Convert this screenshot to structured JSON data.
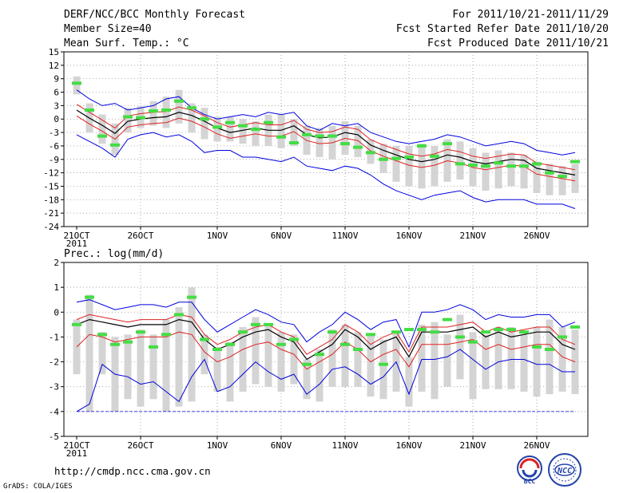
{
  "header": {
    "title": "DERF/NCC/BCC Monthly Forecast",
    "member": "Member Size=40",
    "variable": "Mean Surf. Temp.: °C",
    "period": "For 2011/10/21-2011/11/29",
    "started": "Fcst Started Refer Date 2011/10/20",
    "produced": "Fcst Produced Date 2011/10/21"
  },
  "footer": {
    "url": "http://cmdp.ncc.cma.gov.cn",
    "grads": "GrADS: COLA/IGES",
    "logo1_text": "BCC",
    "logo2_text": "NCC"
  },
  "colors": {
    "box": "#d4d4d4",
    "mean": "#000000",
    "spread": "#dd2222",
    "envelope": "#0000dd",
    "point": "#44dd44",
    "grid": "#888888"
  },
  "chart_data": [
    {
      "type": "line",
      "title": "Mean Surf. Temp.: °C",
      "ylim": [
        -24,
        15
      ],
      "yticks": [
        "15",
        "12",
        "9",
        "6",
        "3",
        "0",
        "-3",
        "-6",
        "-9",
        "-12",
        "-15",
        "-18",
        "-21",
        "-24"
      ],
      "xticks": [
        "21OCT",
        "26OCT",
        "1NOV",
        "6NOV",
        "11NOV",
        "16NOV",
        "21NOV",
        "26NOV"
      ],
      "xtick_days": [
        0,
        5,
        11,
        16,
        21,
        26,
        31,
        36
      ],
      "year_label": "2011",
      "days": 40,
      "series": [
        {
          "name": "ensemble mean",
          "values": [
            2.0,
            0.2,
            -1.4,
            -3.2,
            -0.5,
            0.0,
            0.3,
            0.5,
            1.5,
            0.8,
            -0.5,
            -2.0,
            -3.0,
            -2.5,
            -2.0,
            -2.5,
            -2.5,
            -1.5,
            -3.5,
            -4.2,
            -4.0,
            -3.0,
            -3.5,
            -5.8,
            -7.0,
            -8.0,
            -9.0,
            -9.5,
            -9.0,
            -8.0,
            -8.5,
            -9.5,
            -10.0,
            -9.5,
            -9.0,
            -9.2,
            -11.0,
            -11.5,
            -12.0,
            -12.5
          ]
        },
        {
          "name": "spread upper",
          "values": [
            3.3,
            1.5,
            -0.2,
            -2.0,
            0.7,
            1.2,
            1.5,
            1.7,
            2.7,
            2.0,
            0.7,
            -0.8,
            -1.8,
            -1.3,
            -0.8,
            -1.3,
            -1.3,
            -0.3,
            -2.3,
            -3.0,
            -2.8,
            -1.8,
            -2.3,
            -4.6,
            -5.8,
            -6.8,
            -7.8,
            -8.3,
            -7.8,
            -6.8,
            -7.3,
            -8.3,
            -8.8,
            -8.3,
            -7.8,
            -8.0,
            -9.8,
            -10.3,
            -10.8,
            -11.3
          ]
        },
        {
          "name": "spread lower",
          "values": [
            0.7,
            -1.1,
            -2.7,
            -4.5,
            -1.8,
            -1.3,
            -1.0,
            -0.8,
            0.2,
            -0.5,
            -1.8,
            -3.3,
            -4.3,
            -3.8,
            -3.3,
            -3.8,
            -3.8,
            -2.8,
            -4.8,
            -5.5,
            -5.3,
            -4.3,
            -4.8,
            -7.1,
            -8.3,
            -9.3,
            -10.3,
            -10.8,
            -10.3,
            -9.3,
            -9.8,
            -10.8,
            -11.3,
            -10.8,
            -10.3,
            -10.5,
            -12.3,
            -12.8,
            -13.3,
            -13.8
          ]
        },
        {
          "name": "envelope max",
          "values": [
            6.5,
            4.5,
            3.0,
            3.5,
            2.0,
            2.5,
            3.0,
            4.5,
            5.0,
            2.5,
            1.0,
            0.0,
            0.5,
            1.0,
            0.5,
            1.5,
            1.0,
            1.5,
            -1.5,
            -2.5,
            -1.0,
            -1.5,
            -1.0,
            -3.0,
            -4.0,
            -5.0,
            -5.5,
            -5.0,
            -4.5,
            -3.5,
            -4.0,
            -5.0,
            -6.0,
            -5.5,
            -5.0,
            -5.5,
            -7.0,
            -7.5,
            -8.0,
            -7.5
          ]
        },
        {
          "name": "envelope min",
          "values": [
            -3.5,
            -5.0,
            -6.5,
            -8.5,
            -4.5,
            -3.5,
            -3.0,
            -4.0,
            -3.5,
            -5.0,
            -7.5,
            -7.0,
            -7.0,
            -8.5,
            -8.5,
            -9.0,
            -9.5,
            -8.5,
            -10.5,
            -11.0,
            -11.5,
            -10.5,
            -11.0,
            -12.5,
            -14.5,
            -16.0,
            -17.0,
            -18.0,
            -17.0,
            -16.5,
            -16.0,
            -17.5,
            -18.5,
            -18.0,
            -18.0,
            -18.0,
            -19.0,
            -19.0,
            -19.0,
            -20.0
          ]
        },
        {
          "name": "box upper",
          "values": [
            9.5,
            3.5,
            1.0,
            -1.0,
            2.5,
            2.8,
            4.0,
            5.0,
            6.5,
            3.5,
            2.5,
            0.5,
            0.5,
            0.0,
            -0.5,
            1.0,
            1.0,
            0.0,
            -1.5,
            -2.0,
            -1.5,
            -0.5,
            -1.5,
            -4.5,
            -5.5,
            -6.0,
            -6.0,
            -5.5,
            -6.0,
            -4.5,
            -5.0,
            -6.5,
            -7.5,
            -7.0,
            -7.5,
            -8.0,
            -9.5,
            -10.0,
            -10.5,
            -10.0
          ]
        },
        {
          "name": "box lower",
          "values": [
            5.5,
            -3.0,
            -5.5,
            -8.0,
            -3.0,
            -2.0,
            -1.5,
            -2.0,
            -1.0,
            -3.0,
            -4.5,
            -5.0,
            -5.0,
            -5.5,
            -6.0,
            -6.0,
            -6.5,
            -6.0,
            -8.0,
            -8.5,
            -9.0,
            -8.0,
            -8.5,
            -10.0,
            -12.0,
            -14.0,
            -15.0,
            -15.5,
            -15.0,
            -14.0,
            -13.5,
            -15.0,
            -16.0,
            -15.5,
            -15.0,
            -15.5,
            -16.5,
            -17.0,
            -17.0,
            -16.5
          ]
        },
        {
          "name": "observed point",
          "values": [
            8.0,
            2.0,
            -3.8,
            -5.8,
            0.5,
            0.3,
            1.8,
            2.0,
            4.0,
            2.5,
            0.0,
            -1.8,
            -0.8,
            -1.5,
            -2.3,
            -0.8,
            -4.0,
            -5.3,
            -3.5,
            -3.8,
            -3.8,
            -5.5,
            -6.3,
            -7.5,
            -9.0,
            -8.8,
            -8.5,
            -6.0,
            -8.3,
            -5.5,
            -10.0,
            -10.3,
            -10.5,
            -9.8,
            -10.5,
            -10.5,
            -10.0,
            -12.0,
            -12.8,
            -9.5
          ]
        }
      ]
    },
    {
      "type": "line",
      "title": "Prec.: log(mm/d)",
      "ylim": [
        -5,
        2
      ],
      "yticks": [
        "2",
        "1",
        "0",
        "-1",
        "-2",
        "-3",
        "-4",
        "-5"
      ],
      "xticks": [
        "21OCT",
        "26OCT",
        "1NOV",
        "6NOV",
        "11NOV",
        "16NOV",
        "21NOV",
        "26NOV"
      ],
      "xtick_days": [
        0,
        5,
        11,
        16,
        21,
        26,
        31,
        36
      ],
      "year_label": "2011",
      "days": 40,
      "series": [
        {
          "name": "ensemble mean",
          "values": [
            -0.5,
            -0.3,
            -0.4,
            -0.5,
            -0.6,
            -0.5,
            -0.5,
            -0.5,
            -0.3,
            -0.4,
            -1.1,
            -1.5,
            -1.3,
            -1.0,
            -0.8,
            -0.7,
            -1.0,
            -1.2,
            -1.9,
            -1.6,
            -1.3,
            -0.7,
            -1.0,
            -1.5,
            -1.2,
            -1.0,
            -1.8,
            -0.8,
            -0.8,
            -0.8,
            -0.7,
            -0.6,
            -1.0,
            -0.8,
            -1.0,
            -0.9,
            -0.8,
            -0.8,
            -1.3,
            -1.5
          ]
        },
        {
          "name": "spread upper",
          "values": [
            -0.3,
            -0.1,
            -0.2,
            -0.3,
            -0.4,
            -0.3,
            -0.3,
            -0.3,
            -0.1,
            -0.2,
            -0.9,
            -1.3,
            -1.1,
            -0.8,
            -0.6,
            -0.5,
            -0.8,
            -1.0,
            -1.7,
            -1.4,
            -1.1,
            -0.5,
            -0.8,
            -1.3,
            -1.0,
            -0.8,
            -1.6,
            -0.6,
            -0.6,
            -0.6,
            -0.5,
            -0.4,
            -0.8,
            -0.6,
            -0.8,
            -0.7,
            -0.6,
            -0.6,
            -1.1,
            -1.3
          ]
        },
        {
          "name": "spread lower",
          "values": [
            -1.4,
            -0.9,
            -1.0,
            -1.2,
            -1.1,
            -1.0,
            -1.0,
            -1.0,
            -0.8,
            -0.9,
            -1.6,
            -2.0,
            -1.8,
            -1.5,
            -1.3,
            -1.2,
            -1.5,
            -1.7,
            -2.3,
            -2.0,
            -1.7,
            -1.2,
            -1.5,
            -2.0,
            -1.7,
            -1.5,
            -2.2,
            -1.3,
            -1.3,
            -1.3,
            -1.2,
            -1.1,
            -1.5,
            -1.3,
            -1.5,
            -1.4,
            -1.3,
            -1.3,
            -1.8,
            -2.0
          ]
        },
        {
          "name": "envelope max",
          "values": [
            0.4,
            0.5,
            0.3,
            0.1,
            0.2,
            0.3,
            0.3,
            0.2,
            0.4,
            0.4,
            -0.3,
            -0.8,
            -0.5,
            -0.2,
            0.1,
            -0.1,
            -0.4,
            -0.5,
            -1.2,
            -0.8,
            -0.5,
            0.0,
            -0.3,
            -0.7,
            -0.4,
            -0.3,
            -1.4,
            0.0,
            0.0,
            0.1,
            0.3,
            0.1,
            -0.3,
            -0.1,
            -0.2,
            -0.2,
            -0.1,
            -0.1,
            -0.6,
            -0.4
          ]
        },
        {
          "name": "envelope min",
          "values": [
            -4.0,
            -3.7,
            -2.1,
            -2.5,
            -2.6,
            -2.9,
            -2.8,
            -3.2,
            -3.6,
            -2.6,
            -1.9,
            -3.2,
            -3.0,
            -2.5,
            -2.0,
            -2.4,
            -2.7,
            -2.5,
            -3.3,
            -2.9,
            -2.3,
            -2.2,
            -2.5,
            -2.9,
            -2.6,
            -2.0,
            -3.3,
            -1.9,
            -1.9,
            -1.8,
            -1.5,
            -1.9,
            -2.3,
            -2.0,
            -1.9,
            -1.9,
            -2.1,
            -2.1,
            -2.4,
            -2.4
          ]
        },
        {
          "name": "box upper",
          "values": [
            -0.3,
            0.7,
            -0.8,
            -1.0,
            -0.9,
            -0.7,
            -0.9,
            -0.3,
            0.2,
            1.0,
            -0.9,
            -1.4,
            -1.2,
            -0.6,
            -0.2,
            -0.5,
            -0.8,
            -0.9,
            -1.9,
            -1.5,
            -0.7,
            -0.5,
            -0.8,
            -0.9,
            -1.1,
            -0.8,
            -1.8,
            -0.5,
            -0.4,
            -0.9,
            -0.1,
            -0.8,
            -0.9,
            -0.6,
            -0.6,
            -0.9,
            -0.6,
            -0.3,
            -0.6,
            -0.7
          ]
        },
        {
          "name": "box lower",
          "values": [
            -2.5,
            -4.0,
            -2.5,
            -4.0,
            -3.5,
            -3.8,
            -3.5,
            -4.0,
            -3.8,
            -3.6,
            -2.5,
            -3.2,
            -3.6,
            -3.2,
            -2.9,
            -3.0,
            -3.2,
            -2.9,
            -3.5,
            -3.6,
            -3.0,
            -3.0,
            -3.0,
            -3.4,
            -3.5,
            -3.2,
            -3.8,
            -3.2,
            -3.5,
            -3.0,
            -2.7,
            -3.5,
            -3.1,
            -3.1,
            -3.1,
            -3.2,
            -3.4,
            -3.3,
            -3.2,
            -3.3
          ]
        },
        {
          "name": "observed point",
          "values": [
            -0.5,
            0.6,
            -0.9,
            -1.3,
            -1.2,
            -0.8,
            -1.4,
            -0.9,
            -0.1,
            0.6,
            -1.1,
            -1.5,
            -1.3,
            -0.8,
            -0.5,
            -0.5,
            -1.3,
            -1.1,
            -2.1,
            -1.7,
            -0.8,
            -1.3,
            -1.5,
            -0.9,
            -2.1,
            -0.8,
            -0.7,
            -0.7,
            -0.8,
            -0.3,
            -1.0,
            -1.2,
            -0.8,
            -0.7,
            -0.7,
            -0.8,
            -1.4,
            -1.5,
            -1.0,
            -0.6
          ]
        }
      ],
      "missing_floor": -4
    }
  ]
}
